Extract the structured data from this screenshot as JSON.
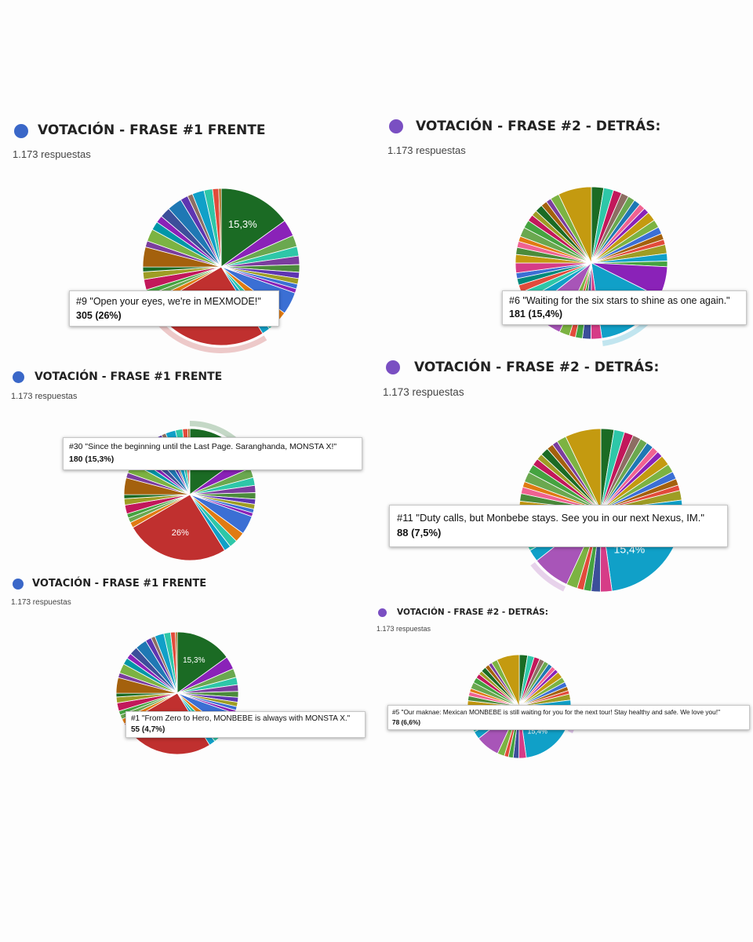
{
  "colors": {
    "blue_dot": "#3a67c8",
    "purple_dot": "#7a4fc2",
    "highlight_red": "#c0302f",
    "highlight_green": "#1b6b24",
    "highlight_cyan": "#10a0c8",
    "highlight_purple": "#a855b8"
  },
  "panels": [
    {
      "title": "VOTACIÓN - FRASE #1 FRENTE",
      "responses": "1.173 respuestas",
      "dot_icon": "blue-circle-icon",
      "tooltip": {
        "label": "#9 \"Open your eyes, we're in MEXMODE!\"",
        "value": "305 (26%)"
      },
      "pie_labels": [
        "15,3%"
      ]
    },
    {
      "title": "VOTACIÓN - FRASE #2 - DETRÁS:",
      "responses": "1.173 respuestas",
      "dot_icon": "purple-circle-icon",
      "tooltip": {
        "label": "#6 \"Waiting for the six stars to shine as one again.\"",
        "value": "181 (15,4%)"
      },
      "pie_labels": []
    },
    {
      "title": "VOTACIÓN - FRASE #1 FRENTE",
      "responses": "1.173 respuestas",
      "dot_icon": "blue-circle-icon",
      "tooltip": {
        "label": "#30 \"Since the beginning until the Last Page. Saranghanda, MONSTA X!\"",
        "value": "180 (15,3%)"
      },
      "pie_labels": [
        "26%"
      ]
    },
    {
      "title": "VOTACIÓN - FRASE #2 - DETRÁS:",
      "responses": "1.173 respuestas",
      "dot_icon": "purple-circle-icon",
      "tooltip": {
        "label": "#11 \"Duty calls, but Monbebe stays. See you in our next Nexus, IM.\"",
        "value": "88 (7,5%)"
      },
      "pie_labels": [
        "15,4%"
      ]
    },
    {
      "title": "VOTACIÓN - FRASE #1 FRENTE",
      "responses": "1.173 respuestas",
      "dot_icon": "blue-circle-icon",
      "tooltip": {
        "label": "#1 \"From Zero to Hero, MONBEBE is always with MONSTA X.\"",
        "value": "55 (4,7%)"
      },
      "pie_labels": [
        "15,3%"
      ]
    },
    {
      "title": "VOTACIÓN - FRASE #2 - DETRÁS:",
      "responses": "1.173 respuestas",
      "dot_icon": "purple-circle-icon",
      "tooltip": {
        "label": "#5 \"Our maknae: Mexican MONBEBE is still waiting for you for the next tour! Stay healthy and safe. We love you!\"",
        "value": "78 (6,6%)"
      },
      "pie_labels": [
        "15,4%"
      ]
    }
  ],
  "chart_data": [
    {
      "type": "pie",
      "title": "VOTACIÓN - FRASE #1 FRENTE",
      "total_responses": 1173,
      "slices": [
        {
          "name": "#9 \"Open your eyes, we're in MEXMODE!\"",
          "count": 305,
          "percent": 26,
          "color": "#c0302f"
        },
        {
          "name": "#30 \"Since the beginning until the Last Page. Saranghanda, MONSTA X!\"",
          "count": 180,
          "percent": 15.3,
          "color": "#1b6b24"
        },
        {
          "name": "#1 \"From Zero to Hero, MONBEBE is always with MONSTA X.\"",
          "count": 55,
          "percent": 4.7,
          "color": "#3b6fd4"
        }
      ],
      "other_percent": 54.0
    },
    {
      "type": "pie",
      "title": "VOTACIÓN - FRASE #2 - DETRÁS:",
      "total_responses": 1173,
      "slices": [
        {
          "name": "#6 \"Waiting for the six stars to shine as one again.\"",
          "count": 181,
          "percent": 15.4,
          "color": "#10a0c8"
        },
        {
          "name": "#11 \"Duty calls, but Monbebe stays. See you in our next Nexus, IM.\"",
          "count": 88,
          "percent": 7.5,
          "color": "#a855b8"
        },
        {
          "name": "#5 \"Our maknae: Mexican MONBEBE is still waiting for you for the next tour! Stay healthy and safe. We love you!\"",
          "count": 78,
          "percent": 6.6,
          "color": "#8a22b8"
        }
      ],
      "other_percent": 70.5
    }
  ]
}
